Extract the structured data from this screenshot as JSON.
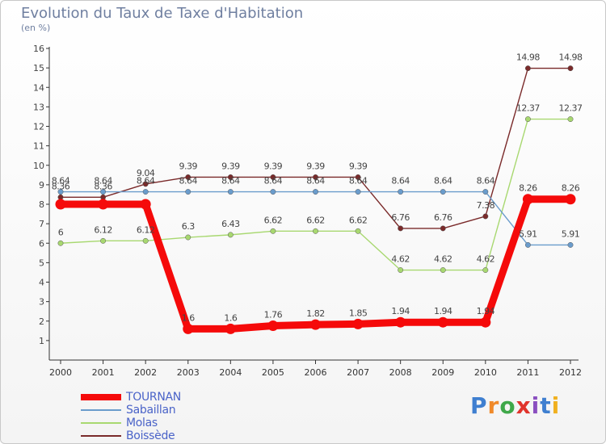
{
  "title": "Evolution du Taux de Taxe d'Habitation",
  "subtitle": "(en %)",
  "logo": {
    "letters": [
      {
        "ch": "P",
        "color": "#3f7fd0"
      },
      {
        "ch": "r",
        "color": "#f08a2a"
      },
      {
        "ch": "o",
        "color": "#3fa84a"
      },
      {
        "ch": "x",
        "color": "#e0342c"
      },
      {
        "ch": "i",
        "color": "#8a4fc0"
      },
      {
        "ch": "t",
        "color": "#3f7fd0"
      },
      {
        "ch": "i",
        "color": "#f0b020"
      }
    ]
  },
  "chart_data": {
    "type": "line",
    "x": [
      "2000",
      "2001",
      "2002",
      "2003",
      "2004",
      "2005",
      "2006",
      "2007",
      "2008",
      "2009",
      "2010",
      "2011",
      "2012"
    ],
    "ylim": [
      0,
      16
    ],
    "yticks": [
      "1",
      "2",
      "3",
      "4",
      "5",
      "6",
      "7",
      "8",
      "9",
      "10",
      "11",
      "12",
      "13",
      "14",
      "15",
      "16"
    ],
    "grid": false,
    "legend_position": "bottom-left",
    "series": [
      {
        "name": "TOURNAN",
        "color": "#f50a0a",
        "values": [
          8,
          8,
          8,
          1.6,
          1.6,
          1.76,
          1.82,
          1.85,
          1.94,
          1.94,
          1.94,
          8.26,
          8.26
        ],
        "labels": [
          "",
          "",
          "",
          "1.6",
          "1.6",
          "1.76",
          "1.82",
          "1.85",
          "1.94",
          "1.94",
          "1.94",
          "8.26",
          "8.26"
        ]
      },
      {
        "name": "Sabaillan",
        "color": "#6a9ccc",
        "values": [
          8.64,
          8.64,
          8.64,
          8.64,
          8.64,
          8.64,
          8.64,
          8.64,
          8.64,
          8.64,
          8.64,
          5.91,
          5.91
        ],
        "labels": [
          "8.64",
          "8.64",
          "8.64",
          "8.64",
          "8.64",
          "8.64",
          "8.64",
          "8.64",
          "8.64",
          "8.64",
          "8.64",
          "5.91",
          "5.91"
        ]
      },
      {
        "name": "Molas",
        "color": "#a8d870",
        "values": [
          6,
          6.12,
          6.12,
          6.3,
          6.43,
          6.62,
          6.62,
          6.62,
          4.62,
          4.62,
          4.62,
          12.37,
          12.37
        ],
        "labels": [
          "6",
          "6.12",
          "6.12",
          "6.3",
          "6.43",
          "6.62",
          "6.62",
          "6.62",
          "4.62",
          "4.62",
          "4.62",
          "12.37",
          "12.37"
        ]
      },
      {
        "name": "Boissède",
        "color": "#7a2a2a",
        "values": [
          8.36,
          8.36,
          9.04,
          9.39,
          9.39,
          9.39,
          9.39,
          9.39,
          6.76,
          6.76,
          7.38,
          14.98,
          14.98
        ],
        "labels": [
          "8.36",
          "8.36",
          "9.04",
          "9.39",
          "9.39",
          "9.39",
          "9.39",
          "9.39",
          "6.76",
          "6.76",
          "7.38",
          "14.98",
          "14.98"
        ]
      }
    ]
  }
}
